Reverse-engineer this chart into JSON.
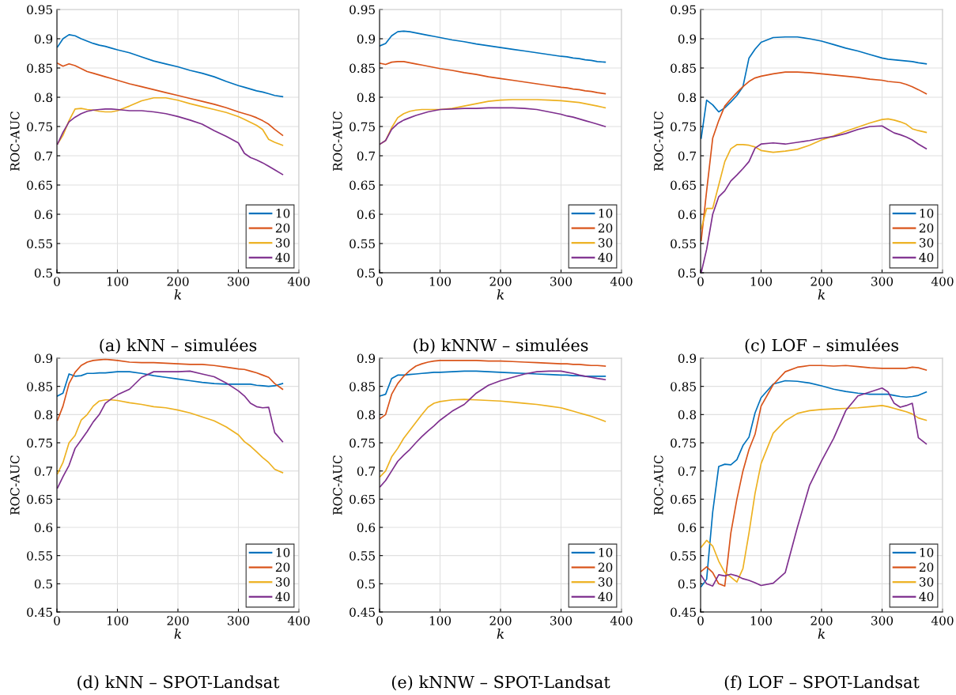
{
  "chart_data": [
    {
      "type": "line",
      "title": "(a) kNN – simulées",
      "xlabel": "k",
      "ylabel": "ROC-AUC",
      "xlim": [
        0,
        400
      ],
      "xticks": [
        0,
        100,
        200,
        300,
        400
      ],
      "ylim": [
        0.5,
        0.95
      ],
      "yticks": [
        0.5,
        0.55,
        0.6,
        0.65,
        0.7,
        0.75,
        0.8,
        0.85,
        0.9,
        0.95
      ],
      "grid": true,
      "legend": "bottom right",
      "x": [
        1,
        10,
        20,
        30,
        40,
        50,
        60,
        70,
        80,
        90,
        100,
        120,
        140,
        160,
        180,
        200,
        220,
        240,
        260,
        280,
        300,
        310,
        320,
        330,
        340,
        350,
        360,
        373
      ],
      "series": [
        {
          "name": "10",
          "color": "#0072bd",
          "values": [
            0.886,
            0.9,
            0.907,
            0.905,
            0.9,
            0.896,
            0.892,
            0.889,
            0.887,
            0.884,
            0.881,
            0.876,
            0.869,
            0.862,
            0.857,
            0.852,
            0.846,
            0.841,
            0.835,
            0.827,
            0.82,
            0.817,
            0.814,
            0.811,
            0.809,
            0.806,
            0.803,
            0.801
          ]
        },
        {
          "name": "20",
          "color": "#d95319",
          "values": [
            0.858,
            0.853,
            0.857,
            0.854,
            0.849,
            0.844,
            0.841,
            0.838,
            0.835,
            0.832,
            0.829,
            0.823,
            0.818,
            0.813,
            0.808,
            0.803,
            0.798,
            0.793,
            0.788,
            0.782,
            0.775,
            0.772,
            0.769,
            0.765,
            0.76,
            0.754,
            0.745,
            0.735
          ]
        },
        {
          "name": "30",
          "color": "#edb120",
          "values": [
            0.72,
            0.735,
            0.76,
            0.78,
            0.781,
            0.779,
            0.778,
            0.776,
            0.775,
            0.775,
            0.777,
            0.785,
            0.794,
            0.799,
            0.799,
            0.795,
            0.789,
            0.784,
            0.779,
            0.774,
            0.767,
            0.762,
            0.757,
            0.752,
            0.745,
            0.728,
            0.723,
            0.718
          ]
        },
        {
          "name": "40",
          "color": "#7e2f8e",
          "values": [
            0.72,
            0.74,
            0.758,
            0.766,
            0.772,
            0.776,
            0.778,
            0.779,
            0.78,
            0.78,
            0.779,
            0.777,
            0.777,
            0.775,
            0.772,
            0.767,
            0.761,
            0.754,
            0.743,
            0.733,
            0.722,
            0.704,
            0.697,
            0.693,
            0.688,
            0.682,
            0.676,
            0.668
          ]
        }
      ]
    },
    {
      "type": "line",
      "title": "(b) kNNW – simulées",
      "xlabel": "k",
      "ylabel": "ROC-AUC",
      "xlim": [
        0,
        400
      ],
      "xticks": [
        0,
        100,
        200,
        300,
        400
      ],
      "ylim": [
        0.5,
        0.95
      ],
      "yticks": [
        0.5,
        0.55,
        0.6,
        0.65,
        0.7,
        0.75,
        0.8,
        0.85,
        0.9,
        0.95
      ],
      "grid": true,
      "legend": "bottom right",
      "x": [
        1,
        10,
        20,
        30,
        40,
        50,
        60,
        70,
        80,
        90,
        100,
        120,
        140,
        160,
        180,
        200,
        220,
        240,
        260,
        280,
        300,
        310,
        320,
        330,
        340,
        350,
        360,
        373
      ],
      "series": [
        {
          "name": "10",
          "color": "#0072bd",
          "values": [
            0.888,
            0.892,
            0.905,
            0.912,
            0.913,
            0.912,
            0.91,
            0.908,
            0.906,
            0.904,
            0.902,
            0.898,
            0.895,
            0.891,
            0.888,
            0.885,
            0.882,
            0.879,
            0.876,
            0.873,
            0.87,
            0.869,
            0.867,
            0.866,
            0.864,
            0.863,
            0.861,
            0.86
          ]
        },
        {
          "name": "20",
          "color": "#d95319",
          "values": [
            0.858,
            0.856,
            0.86,
            0.861,
            0.861,
            0.859,
            0.857,
            0.855,
            0.853,
            0.851,
            0.849,
            0.846,
            0.842,
            0.839,
            0.835,
            0.832,
            0.829,
            0.826,
            0.823,
            0.82,
            0.817,
            0.816,
            0.814,
            0.813,
            0.811,
            0.81,
            0.808,
            0.806
          ]
        },
        {
          "name": "30",
          "color": "#edb120",
          "values": [
            0.72,
            0.726,
            0.748,
            0.765,
            0.772,
            0.776,
            0.778,
            0.779,
            0.779,
            0.779,
            0.779,
            0.781,
            0.785,
            0.789,
            0.793,
            0.795,
            0.796,
            0.796,
            0.796,
            0.795,
            0.794,
            0.793,
            0.792,
            0.791,
            0.789,
            0.787,
            0.785,
            0.782
          ]
        },
        {
          "name": "40",
          "color": "#7e2f8e",
          "values": [
            0.72,
            0.726,
            0.745,
            0.755,
            0.761,
            0.765,
            0.769,
            0.772,
            0.775,
            0.777,
            0.779,
            0.78,
            0.781,
            0.781,
            0.782,
            0.782,
            0.782,
            0.781,
            0.779,
            0.775,
            0.771,
            0.768,
            0.766,
            0.763,
            0.76,
            0.757,
            0.754,
            0.75
          ]
        }
      ]
    },
    {
      "type": "line",
      "title": "(c) LOF – simulées",
      "xlabel": "k",
      "ylabel": "ROC-AUC",
      "xlim": [
        0,
        400
      ],
      "xticks": [
        0,
        100,
        200,
        300,
        400
      ],
      "ylim": [
        0.5,
        0.95
      ],
      "yticks": [
        0.5,
        0.55,
        0.6,
        0.65,
        0.7,
        0.75,
        0.8,
        0.85,
        0.9,
        0.95
      ],
      "grid": true,
      "legend": "bottom right",
      "x": [
        1,
        10,
        20,
        30,
        40,
        50,
        60,
        70,
        80,
        90,
        100,
        120,
        140,
        160,
        180,
        200,
        220,
        240,
        260,
        280,
        300,
        310,
        320,
        330,
        340,
        350,
        360,
        373
      ],
      "series": [
        {
          "name": "10",
          "color": "#0072bd",
          "values": [
            0.73,
            0.795,
            0.787,
            0.775,
            0.782,
            0.792,
            0.803,
            0.818,
            0.867,
            0.882,
            0.894,
            0.902,
            0.903,
            0.903,
            0.9,
            0.896,
            0.89,
            0.884,
            0.879,
            0.873,
            0.867,
            0.865,
            0.864,
            0.863,
            0.862,
            0.861,
            0.859,
            0.857
          ]
        },
        {
          "name": "20",
          "color": "#d95319",
          "values": [
            0.555,
            0.64,
            0.73,
            0.76,
            0.785,
            0.797,
            0.808,
            0.818,
            0.827,
            0.833,
            0.836,
            0.84,
            0.843,
            0.843,
            0.842,
            0.84,
            0.838,
            0.836,
            0.834,
            0.831,
            0.829,
            0.827,
            0.826,
            0.825,
            0.822,
            0.818,
            0.813,
            0.806
          ]
        },
        {
          "name": "30",
          "color": "#edb120",
          "values": [
            0.575,
            0.61,
            0.61,
            0.65,
            0.69,
            0.712,
            0.719,
            0.719,
            0.718,
            0.715,
            0.709,
            0.706,
            0.708,
            0.711,
            0.718,
            0.727,
            0.734,
            0.742,
            0.749,
            0.756,
            0.762,
            0.763,
            0.761,
            0.758,
            0.754,
            0.746,
            0.743,
            0.74
          ]
        },
        {
          "name": "40",
          "color": "#7e2f8e",
          "values": [
            0.5,
            0.54,
            0.6,
            0.63,
            0.64,
            0.657,
            0.667,
            0.678,
            0.69,
            0.713,
            0.72,
            0.722,
            0.72,
            0.723,
            0.726,
            0.73,
            0.733,
            0.738,
            0.745,
            0.75,
            0.751,
            0.745,
            0.739,
            0.736,
            0.732,
            0.727,
            0.72,
            0.712
          ]
        }
      ]
    },
    {
      "type": "line",
      "title": "(d) kNN – SPOT-Landsat",
      "xlabel": "k",
      "ylabel": "ROC-AUC",
      "xlim": [
        0,
        400
      ],
      "xticks": [
        0,
        100,
        200,
        300,
        400
      ],
      "ylim": [
        0.45,
        0.9
      ],
      "yticks": [
        0.45,
        0.5,
        0.55,
        0.6,
        0.65,
        0.7,
        0.75,
        0.8,
        0.85,
        0.9
      ],
      "grid": true,
      "legend": "bottom right",
      "x": [
        1,
        10,
        20,
        30,
        40,
        50,
        60,
        70,
        80,
        90,
        100,
        120,
        140,
        160,
        180,
        200,
        220,
        240,
        260,
        280,
        300,
        310,
        320,
        330,
        340,
        350,
        360,
        373
      ],
      "series": [
        {
          "name": "10",
          "color": "#0072bd",
          "values": [
            0.833,
            0.838,
            0.872,
            0.868,
            0.869,
            0.873,
            0.873,
            0.874,
            0.874,
            0.875,
            0.876,
            0.876,
            0.873,
            0.869,
            0.866,
            0.863,
            0.86,
            0.857,
            0.855,
            0.854,
            0.854,
            0.854,
            0.854,
            0.852,
            0.851,
            0.85,
            0.851,
            0.855
          ]
        },
        {
          "name": "20",
          "color": "#d95319",
          "values": [
            0.79,
            0.815,
            0.855,
            0.875,
            0.887,
            0.893,
            0.896,
            0.897,
            0.898,
            0.897,
            0.896,
            0.893,
            0.892,
            0.892,
            0.891,
            0.89,
            0.889,
            0.889,
            0.887,
            0.884,
            0.881,
            0.88,
            0.877,
            0.874,
            0.87,
            0.866,
            0.855,
            0.845
          ]
        },
        {
          "name": "30",
          "color": "#edb120",
          "values": [
            0.695,
            0.715,
            0.75,
            0.763,
            0.79,
            0.8,
            0.815,
            0.824,
            0.826,
            0.826,
            0.825,
            0.821,
            0.818,
            0.814,
            0.812,
            0.808,
            0.803,
            0.796,
            0.789,
            0.778,
            0.764,
            0.752,
            0.744,
            0.734,
            0.724,
            0.715,
            0.703,
            0.697
          ]
        },
        {
          "name": "40",
          "color": "#7e2f8e",
          "values": [
            0.67,
            0.69,
            0.71,
            0.74,
            0.755,
            0.77,
            0.787,
            0.8,
            0.82,
            0.828,
            0.835,
            0.845,
            0.866,
            0.876,
            0.876,
            0.876,
            0.877,
            0.872,
            0.867,
            0.856,
            0.842,
            0.833,
            0.82,
            0.814,
            0.812,
            0.813,
            0.768,
            0.752
          ]
        }
      ]
    },
    {
      "type": "line",
      "title": "(e) kNNW – SPOT-Landsat",
      "xlabel": "k",
      "ylabel": "ROC-AUC",
      "xlim": [
        0,
        400
      ],
      "xticks": [
        0,
        100,
        200,
        300,
        400
      ],
      "ylim": [
        0.45,
        0.9
      ],
      "yticks": [
        0.45,
        0.5,
        0.55,
        0.6,
        0.65,
        0.7,
        0.75,
        0.8,
        0.85,
        0.9
      ],
      "grid": true,
      "legend": "bottom right",
      "x": [
        1,
        10,
        20,
        30,
        40,
        50,
        60,
        70,
        80,
        90,
        100,
        120,
        140,
        160,
        180,
        200,
        220,
        240,
        260,
        280,
        300,
        310,
        320,
        330,
        340,
        350,
        360,
        373
      ],
      "series": [
        {
          "name": "10",
          "color": "#0072bd",
          "values": [
            0.833,
            0.836,
            0.864,
            0.87,
            0.87,
            0.871,
            0.872,
            0.873,
            0.874,
            0.875,
            0.875,
            0.876,
            0.877,
            0.877,
            0.876,
            0.875,
            0.874,
            0.873,
            0.872,
            0.871,
            0.87,
            0.87,
            0.869,
            0.869,
            0.868,
            0.868,
            0.868,
            0.868
          ]
        },
        {
          "name": "20",
          "color": "#d95319",
          "values": [
            0.793,
            0.8,
            0.836,
            0.855,
            0.868,
            0.878,
            0.886,
            0.89,
            0.893,
            0.895,
            0.896,
            0.896,
            0.896,
            0.896,
            0.895,
            0.895,
            0.894,
            0.893,
            0.892,
            0.891,
            0.89,
            0.89,
            0.889,
            0.889,
            0.888,
            0.887,
            0.887,
            0.886
          ]
        },
        {
          "name": "30",
          "color": "#edb120",
          "values": [
            0.69,
            0.7,
            0.725,
            0.74,
            0.758,
            0.772,
            0.786,
            0.8,
            0.813,
            0.82,
            0.823,
            0.826,
            0.827,
            0.826,
            0.825,
            0.824,
            0.822,
            0.82,
            0.818,
            0.815,
            0.812,
            0.809,
            0.806,
            0.803,
            0.8,
            0.797,
            0.793,
            0.788
          ]
        },
        {
          "name": "40",
          "color": "#7e2f8e",
          "values": [
            0.672,
            0.683,
            0.7,
            0.717,
            0.728,
            0.738,
            0.75,
            0.761,
            0.771,
            0.78,
            0.79,
            0.806,
            0.818,
            0.838,
            0.852,
            0.86,
            0.866,
            0.872,
            0.876,
            0.877,
            0.877,
            0.875,
            0.873,
            0.87,
            0.868,
            0.866,
            0.864,
            0.862
          ]
        }
      ]
    },
    {
      "type": "line",
      "title": "(f) LOF – SPOT-Landsat",
      "xlabel": "k",
      "ylabel": "ROC-AUC",
      "xlim": [
        0,
        400
      ],
      "xticks": [
        0,
        100,
        200,
        300,
        400
      ],
      "ylim": [
        0.45,
        0.9
      ],
      "yticks": [
        0.45,
        0.5,
        0.55,
        0.6,
        0.65,
        0.7,
        0.75,
        0.8,
        0.85,
        0.9
      ],
      "grid": true,
      "legend": "bottom right",
      "x": [
        1,
        10,
        20,
        30,
        40,
        50,
        60,
        70,
        80,
        90,
        100,
        120,
        140,
        160,
        180,
        200,
        220,
        240,
        260,
        280,
        300,
        310,
        320,
        330,
        340,
        350,
        360,
        373
      ],
      "series": [
        {
          "name": "10",
          "color": "#0072bd",
          "values": [
            0.495,
            0.508,
            0.627,
            0.708,
            0.712,
            0.711,
            0.72,
            0.745,
            0.76,
            0.803,
            0.83,
            0.854,
            0.86,
            0.859,
            0.856,
            0.851,
            0.845,
            0.841,
            0.838,
            0.836,
            0.836,
            0.836,
            0.834,
            0.832,
            0.831,
            0.832,
            0.834,
            0.84
          ]
        },
        {
          "name": "20",
          "color": "#d95319",
          "values": [
            0.522,
            0.53,
            0.52,
            0.5,
            0.496,
            0.59,
            0.65,
            0.7,
            0.738,
            0.765,
            0.815,
            0.853,
            0.876,
            0.884,
            0.887,
            0.887,
            0.886,
            0.887,
            0.885,
            0.883,
            0.882,
            0.882,
            0.882,
            0.882,
            0.882,
            0.884,
            0.883,
            0.879
          ]
        },
        {
          "name": "30",
          "color": "#edb120",
          "values": [
            0.565,
            0.577,
            0.567,
            0.54,
            0.52,
            0.512,
            0.503,
            0.527,
            0.59,
            0.66,
            0.713,
            0.767,
            0.789,
            0.802,
            0.807,
            0.809,
            0.81,
            0.811,
            0.812,
            0.814,
            0.816,
            0.814,
            0.811,
            0.808,
            0.805,
            0.801,
            0.794,
            0.79
          ]
        },
        {
          "name": "40",
          "color": "#7e2f8e",
          "values": [
            0.515,
            0.5,
            0.496,
            0.516,
            0.514,
            0.517,
            0.514,
            0.509,
            0.506,
            0.502,
            0.497,
            0.501,
            0.52,
            0.6,
            0.674,
            0.718,
            0.758,
            0.807,
            0.833,
            0.84,
            0.847,
            0.84,
            0.82,
            0.813,
            0.816,
            0.82,
            0.759,
            0.748
          ]
        }
      ]
    }
  ]
}
